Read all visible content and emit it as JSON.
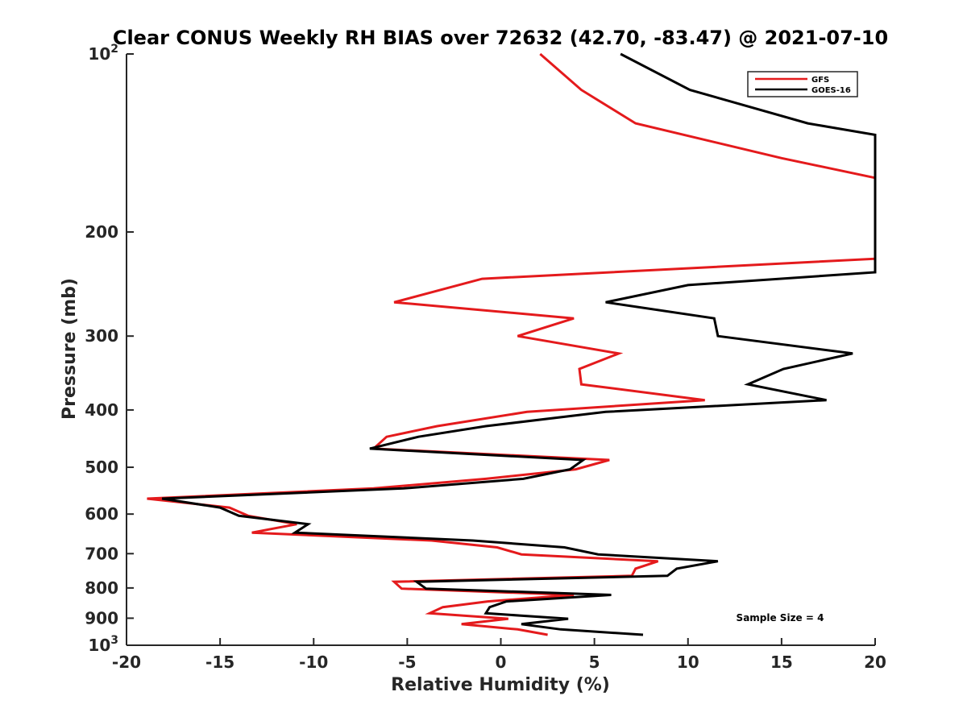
{
  "chart_data": {
    "type": "line",
    "title": "Clear CONUS Weekly RH BIAS over 72632 (42.70, -83.47) @ 2021-07-10",
    "xlabel": "Relative Humidity (%)",
    "ylabel": "Pressure (mb)",
    "xlim": [
      -20,
      20
    ],
    "ylim": [
      100,
      1000
    ],
    "y_scale": "log",
    "y_reversed": true,
    "grid": false,
    "x_ticks": [
      -20,
      -15,
      -10,
      -5,
      0,
      5,
      10,
      15,
      20
    ],
    "x_tick_labels": [
      "-20",
      "-15",
      "-10",
      "-5",
      "0",
      "5",
      "10",
      "15",
      "20"
    ],
    "y_ticks": [
      100,
      200,
      300,
      400,
      500,
      600,
      700,
      800,
      900,
      1000
    ],
    "y_tick_labels": [
      {
        "base": "10",
        "exp": "2"
      },
      {
        "base": "200",
        "exp": ""
      },
      {
        "base": "300",
        "exp": ""
      },
      {
        "base": "400",
        "exp": ""
      },
      {
        "base": "500",
        "exp": ""
      },
      {
        "base": "600",
        "exp": ""
      },
      {
        "base": "700",
        "exp": ""
      },
      {
        "base": "800",
        "exp": ""
      },
      {
        "base": "900",
        "exp": ""
      },
      {
        "base": "10",
        "exp": "3"
      }
    ],
    "legend_position": "top-right",
    "annotation": "Sample Size = 4",
    "series": [
      {
        "name": "GFS",
        "color": "#e41a1c",
        "points": [
          [
            2.1,
            100
          ],
          [
            4.3,
            115
          ],
          [
            7.2,
            131
          ],
          [
            15.0,
            150
          ],
          [
            20.0,
            162
          ],
          [
            20.0,
            222
          ],
          [
            -1.0,
            240
          ],
          [
            -5.7,
            263
          ],
          [
            3.9,
            280
          ],
          [
            0.9,
            300
          ],
          [
            6.3,
            321
          ],
          [
            4.2,
            341
          ],
          [
            4.3,
            362
          ],
          [
            10.9,
            385
          ],
          [
            1.4,
            403
          ],
          [
            -3.4,
            426
          ],
          [
            -6.1,
            444
          ],
          [
            -6.8,
            465
          ],
          [
            5.8,
            486
          ],
          [
            4.0,
            504
          ],
          [
            -0.8,
            523
          ],
          [
            -6.8,
            543
          ],
          [
            -18.9,
            565
          ],
          [
            -14.5,
            585
          ],
          [
            -13.5,
            604
          ],
          [
            -10.9,
            624
          ],
          [
            -13.3,
            645
          ],
          [
            -3.7,
            665
          ],
          [
            -0.2,
            683
          ],
          [
            1.1,
            702
          ],
          [
            8.4,
            721
          ],
          [
            7.2,
            742
          ],
          [
            7.0,
            763
          ],
          [
            -5.7,
            781
          ],
          [
            -5.3,
            802
          ],
          [
            3.9,
            822
          ],
          [
            -0.7,
            843
          ],
          [
            -3.1,
            862
          ],
          [
            -3.8,
            883
          ],
          [
            0.4,
            902
          ],
          [
            -2.1,
            921
          ],
          [
            0.9,
            940
          ],
          [
            2.5,
            960
          ]
        ]
      },
      {
        "name": "GOES-16",
        "color": "#000000",
        "points": [
          [
            6.4,
            100
          ],
          [
            10.1,
            115
          ],
          [
            16.4,
            131
          ],
          [
            20.0,
            137
          ],
          [
            20.0,
            234
          ],
          [
            10.0,
            246
          ],
          [
            5.6,
            263
          ],
          [
            11.4,
            280
          ],
          [
            11.6,
            300
          ],
          [
            18.8,
            321
          ],
          [
            15.1,
            341
          ],
          [
            13.2,
            362
          ],
          [
            17.4,
            385
          ],
          [
            5.6,
            403
          ],
          [
            -0.8,
            426
          ],
          [
            -4.4,
            444
          ],
          [
            -7.0,
            465
          ],
          [
            4.4,
            486
          ],
          [
            3.7,
            504
          ],
          [
            1.2,
            523
          ],
          [
            -5.2,
            543
          ],
          [
            -18.1,
            565
          ],
          [
            -15.0,
            585
          ],
          [
            -14.0,
            604
          ],
          [
            -10.3,
            624
          ],
          [
            -11.0,
            645
          ],
          [
            -1.5,
            665
          ],
          [
            3.4,
            683
          ],
          [
            5.2,
            702
          ],
          [
            11.6,
            721
          ],
          [
            9.4,
            742
          ],
          [
            8.9,
            763
          ],
          [
            -4.5,
            781
          ],
          [
            -4.0,
            802
          ],
          [
            5.9,
            822
          ],
          [
            0.3,
            843
          ],
          [
            -0.6,
            862
          ],
          [
            -0.8,
            883
          ],
          [
            3.6,
            902
          ],
          [
            1.1,
            921
          ],
          [
            3.2,
            940
          ],
          [
            7.6,
            960
          ]
        ]
      }
    ]
  }
}
